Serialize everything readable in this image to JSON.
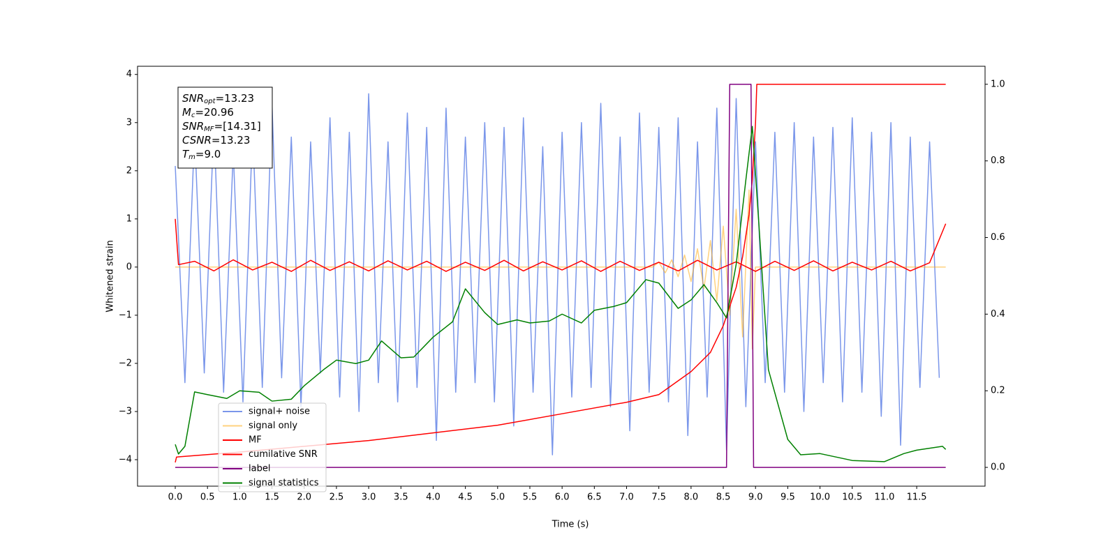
{
  "chart_data": {
    "type": "line",
    "xlabel": "Time (s)",
    "ylabel": "Whitened strain",
    "xlim": [
      -0.585,
      12.56
    ],
    "ylim": [
      -4.55,
      4.17
    ],
    "y2lim": [
      -0.049,
      1.047
    ],
    "xticks": [
      {
        "value": 0,
        "label": "0.0"
      },
      0.5,
      {
        "value": 1,
        "label": "1.0"
      },
      1.5,
      {
        "value": 2,
        "label": "2.0"
      },
      2.5,
      {
        "value": 3,
        "label": "3.0"
      },
      3.5,
      {
        "value": 4,
        "label": "4.0"
      },
      4.5,
      {
        "value": 5,
        "label": "5.0"
      },
      5.5,
      {
        "value": 6,
        "label": "6.0"
      },
      6.5,
      {
        "value": 7,
        "label": "7.0"
      },
      7.5,
      {
        "value": 8,
        "label": "8.0"
      },
      8.5,
      {
        "value": 9,
        "label": "9.0"
      },
      9.5,
      {
        "value": 10,
        "label": "10.0"
      },
      10.5,
      {
        "value": 11,
        "label": "11.0"
      },
      11.5
    ],
    "yticks": [
      4,
      3,
      2,
      1,
      0,
      {
        "value": -1,
        "label": "−1"
      },
      {
        "value": -2,
        "label": "−2"
      },
      {
        "value": -3,
        "label": "−3"
      },
      {
        "value": -4,
        "label": "−4"
      }
    ],
    "y2ticks": [
      {
        "value": 0,
        "label": "0.0"
      },
      0.2,
      0.4,
      0.6,
      0.8,
      {
        "value": 1,
        "label": "1.0"
      }
    ],
    "legend": "lower left",
    "annotation": [
      {
        "main": "SNR",
        "sub": "opt",
        "rest": "=13.23"
      },
      {
        "main": "M",
        "sub": "c",
        "rest": "=20.96"
      },
      {
        "main": "SNR",
        "sub": "MF",
        "rest": "=[14.31]"
      },
      {
        "main": "CSNR",
        "rest": "=13.23"
      },
      {
        "main": "T",
        "sub": "m",
        "rest": "=9.0"
      }
    ],
    "series": [
      {
        "name": "signal+ noise",
        "color": "#4169e1",
        "alpha": 0.7,
        "x": [
          0,
          0.15,
          0.3,
          0.45,
          0.6,
          0.75,
          0.9,
          1.05,
          1.2,
          1.35,
          1.5,
          1.65,
          1.8,
          1.95,
          2.1,
          2.25,
          2.4,
          2.55,
          2.7,
          2.85,
          3,
          3.15,
          3.3,
          3.45,
          3.6,
          3.75,
          3.9,
          4.05,
          4.2,
          4.35,
          4.5,
          4.65,
          4.8,
          4.95,
          5.1,
          5.25,
          5.4,
          5.55,
          5.7,
          5.85,
          6,
          6.15,
          6.3,
          6.45,
          6.6,
          6.75,
          6.9,
          7.05,
          7.2,
          7.35,
          7.5,
          7.65,
          7.8,
          7.95,
          8.1,
          8.25,
          8.4,
          8.55,
          8.7,
          8.85,
          9,
          9.15,
          9.3,
          9.45,
          9.6,
          9.75,
          9.9,
          10.05,
          10.2,
          10.35,
          10.5,
          10.65,
          10.8,
          10.95,
          11.1,
          11.25,
          11.4,
          11.55,
          11.7,
          11.85
        ],
        "values": [
          2.1,
          -2.4,
          2.8,
          -2.2,
          3.0,
          -2.6,
          2.4,
          -2.8,
          2.9,
          -2.5,
          3.4,
          -2.3,
          2.7,
          -2.9,
          2.6,
          -2.2,
          3.1,
          -2.7,
          2.8,
          -3.0,
          3.6,
          -2.4,
          2.6,
          -2.8,
          3.2,
          -2.5,
          2.9,
          -3.6,
          3.3,
          -2.6,
          2.7,
          -2.4,
          3.0,
          -2.8,
          2.9,
          -3.3,
          3.1,
          -2.6,
          2.5,
          -3.9,
          2.8,
          -2.7,
          3.0,
          -2.5,
          3.4,
          -2.9,
          2.7,
          -3.4,
          3.2,
          -2.6,
          2.9,
          -2.8,
          3.1,
          -3.5,
          2.6,
          -2.7,
          3.3,
          -3.8,
          3.5,
          -2.9,
          2.6,
          -2.4,
          2.8,
          -2.6,
          3.0,
          -3.0,
          2.7,
          -2.4,
          2.9,
          -2.8,
          3.1,
          -2.6,
          2.8,
          -3.1,
          3.0,
          -3.7,
          2.7,
          -2.5,
          2.6,
          -2.3
        ]
      },
      {
        "name": "signal only",
        "color": "#ffa500",
        "alpha": 0.5,
        "x": [
          0,
          7.4,
          7.5,
          7.6,
          7.7,
          7.8,
          7.9,
          8.0,
          8.1,
          8.2,
          8.3,
          8.4,
          8.5,
          8.6,
          8.7,
          8.8,
          8.9,
          8.95,
          9.0,
          11.95
        ],
        "values": [
          0,
          0,
          0.1,
          -0.12,
          0.15,
          -0.2,
          0.25,
          -0.3,
          0.38,
          -0.45,
          0.55,
          -0.7,
          0.85,
          -1.0,
          1.2,
          -1.45,
          1.6,
          -1.7,
          0,
          0
        ]
      },
      {
        "name": "MF",
        "color": "#ff0000",
        "x": [
          0,
          0.05,
          0.3,
          0.6,
          0.9,
          1.2,
          1.5,
          1.8,
          2.1,
          2.4,
          2.7,
          3.0,
          3.3,
          3.6,
          3.9,
          4.2,
          4.5,
          4.8,
          5.1,
          5.4,
          5.7,
          6.0,
          6.3,
          6.6,
          6.9,
          7.2,
          7.5,
          7.8,
          8.1,
          8.4,
          8.7,
          9.0,
          9.3,
          9.6,
          9.9,
          10.2,
          10.5,
          10.8,
          11.1,
          11.4,
          11.7,
          11.95
        ],
        "values": [
          1.0,
          0.05,
          0.12,
          -0.08,
          0.15,
          -0.06,
          0.1,
          -0.09,
          0.14,
          -0.07,
          0.11,
          -0.08,
          0.13,
          -0.06,
          0.12,
          -0.09,
          0.1,
          -0.07,
          0.14,
          -0.08,
          0.11,
          -0.06,
          0.13,
          -0.09,
          0.12,
          -0.07,
          0.1,
          -0.08,
          0.14,
          -0.06,
          0.11,
          -0.09,
          0.12,
          -0.07,
          0.13,
          -0.08,
          0.1,
          -0.06,
          0.12,
          -0.08,
          0.09,
          0.9
        ]
      },
      {
        "name": "cumilative SNR",
        "color": "#ff0000",
        "axis": "y2",
        "x": [
          0,
          0.02,
          1,
          2,
          3,
          4,
          5,
          6,
          7,
          7.5,
          8,
          8.3,
          8.5,
          8.7,
          8.8,
          8.9,
          8.95,
          9.0,
          9.02,
          11.95
        ],
        "values": [
          0.013,
          0.027,
          0.04,
          0.055,
          0.07,
          0.09,
          0.11,
          0.14,
          0.17,
          0.19,
          0.25,
          0.3,
          0.37,
          0.47,
          0.55,
          0.66,
          0.75,
          0.9,
          1.0,
          1.0
        ]
      },
      {
        "name": "label",
        "color": "#800080",
        "axis": "y2",
        "x": [
          0,
          8.55,
          8.6,
          8.93,
          8.97,
          11.95
        ],
        "values": [
          0,
          0,
          1,
          1,
          0,
          0
        ]
      },
      {
        "name": "signal statistics",
        "color": "#008000",
        "axis": "y2",
        "x": [
          0,
          0.05,
          0.15,
          0.3,
          0.5,
          0.8,
          1.0,
          1.3,
          1.5,
          1.8,
          2.0,
          2.3,
          2.5,
          2.8,
          3.0,
          3.2,
          3.5,
          3.7,
          4.0,
          4.3,
          4.5,
          4.8,
          5.0,
          5.3,
          5.5,
          5.8,
          6.0,
          6.3,
          6.5,
          6.8,
          7.0,
          7.3,
          7.5,
          7.8,
          8.0,
          8.2,
          8.4,
          8.55,
          8.7,
          8.85,
          8.95,
          9.05,
          9.2,
          9.5,
          9.7,
          10.0,
          10.5,
          11.0,
          11.3,
          11.5,
          11.9,
          11.95
        ],
        "values": [
          0.06,
          0.035,
          0.055,
          0.197,
          0.19,
          0.18,
          0.2,
          0.196,
          0.173,
          0.178,
          0.213,
          0.255,
          0.28,
          0.271,
          0.28,
          0.33,
          0.286,
          0.288,
          0.34,
          0.38,
          0.466,
          0.404,
          0.373,
          0.385,
          0.377,
          0.382,
          0.4,
          0.377,
          0.41,
          0.42,
          0.43,
          0.49,
          0.481,
          0.415,
          0.437,
          0.477,
          0.43,
          0.39,
          0.53,
          0.75,
          0.89,
          0.64,
          0.255,
          0.073,
          0.033,
          0.036,
          0.018,
          0.015,
          0.036,
          0.045,
          0.055,
          0.047
        ]
      }
    ]
  }
}
